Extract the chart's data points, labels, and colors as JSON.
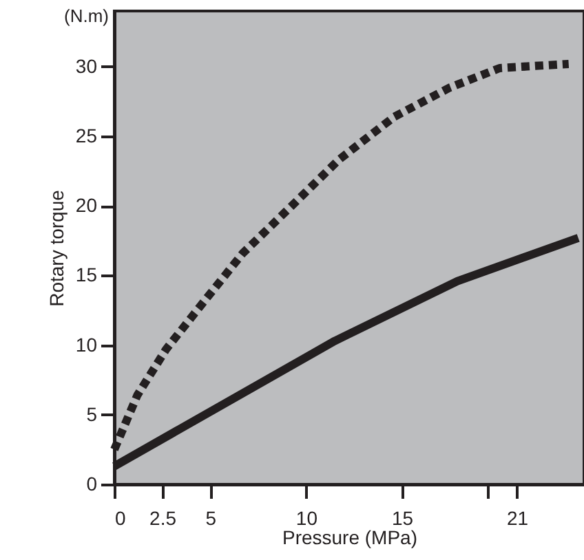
{
  "chart_data": {
    "type": "line",
    "xlabel": "Pressure (MPa)",
    "ylabel": "Rotary torque",
    "annotations": [
      "(N.m)"
    ],
    "xlim": [
      0,
      24.5
    ],
    "ylim": [
      0,
      34
    ],
    "xticks": [
      0,
      2.5,
      5,
      10,
      15,
      {
        "value": 19.5,
        "label": null
      },
      21
    ],
    "yticks": [
      0,
      5,
      10,
      15,
      20,
      25,
      30
    ],
    "series": [
      {
        "color": "#231f20",
        "line_style": "dashed",
        "x": [
          0,
          1.2,
          2.7,
          4.6,
          6.7,
          9.4,
          11.7,
          14.6,
          17.5,
          20.1,
          23.7
        ],
        "values": [
          2.5,
          6.4,
          9.7,
          13.0,
          16.6,
          20.2,
          23.3,
          26.4,
          28.5,
          29.9,
          30.2
        ]
      },
      {
        "color": "#231f20",
        "line_style": "solid",
        "x": [
          0,
          11.5,
          17.9,
          24.2
        ],
        "values": [
          1.3,
          10.3,
          14.6,
          17.7
        ]
      }
    ]
  }
}
